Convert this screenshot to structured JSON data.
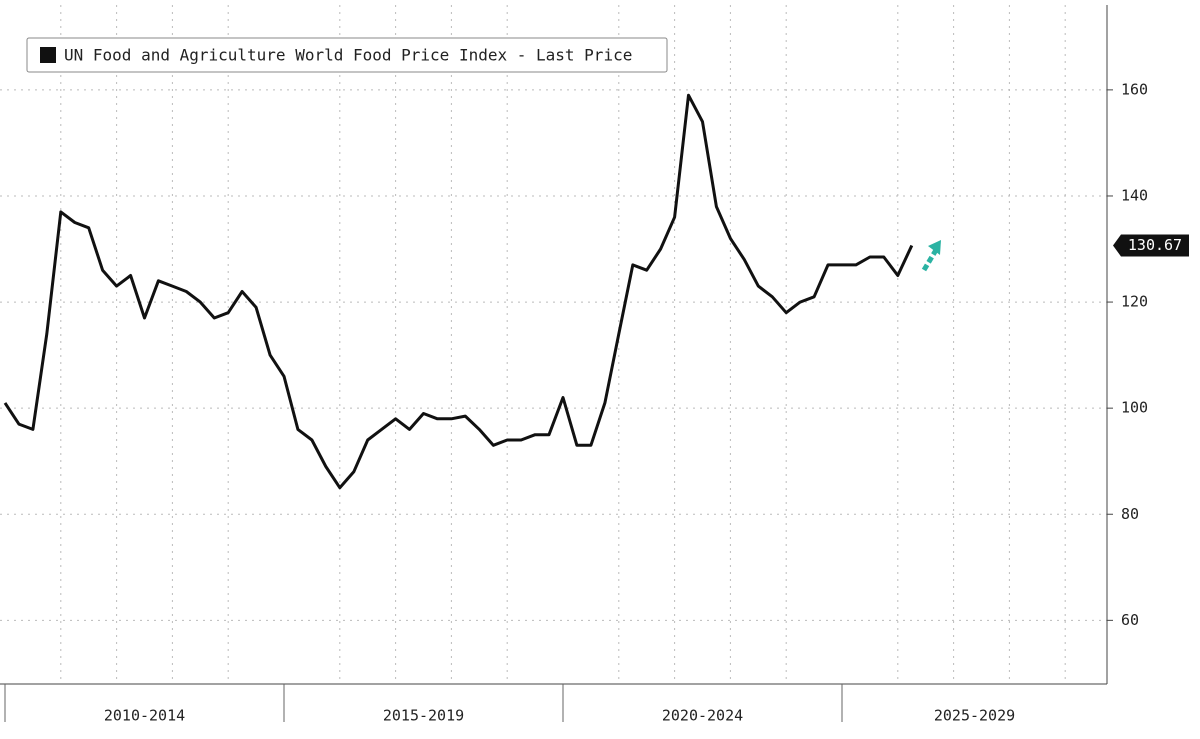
{
  "chart_data": {
    "type": "line",
    "periods": [
      "2010-2014",
      "2015-2019",
      "2020-2024",
      "2025-2029"
    ],
    "series": [
      {
        "name": "UN Food and Agriculture World Food Price Index - Last Price",
        "color": "#111111",
        "values": [
          101,
          97,
          96,
          114,
          137,
          135,
          134,
          126,
          123,
          125,
          117,
          124,
          123,
          122,
          120,
          117,
          118,
          122,
          119,
          110,
          106,
          96,
          94,
          89,
          85,
          88,
          94,
          96,
          98,
          96,
          99,
          98,
          98,
          98.5,
          96,
          93,
          94,
          94,
          95,
          95,
          102,
          93,
          93,
          101,
          114,
          127,
          126,
          130,
          136,
          159,
          154,
          138,
          132,
          128,
          123,
          121,
          118,
          120,
          121,
          127,
          127,
          127,
          128.5,
          128.5,
          125,
          130.67
        ]
      }
    ],
    "ylim": [
      48,
      176
    ],
    "yticks": [
      60,
      80,
      100,
      120,
      140,
      160
    ],
    "grid": true
  }
}
